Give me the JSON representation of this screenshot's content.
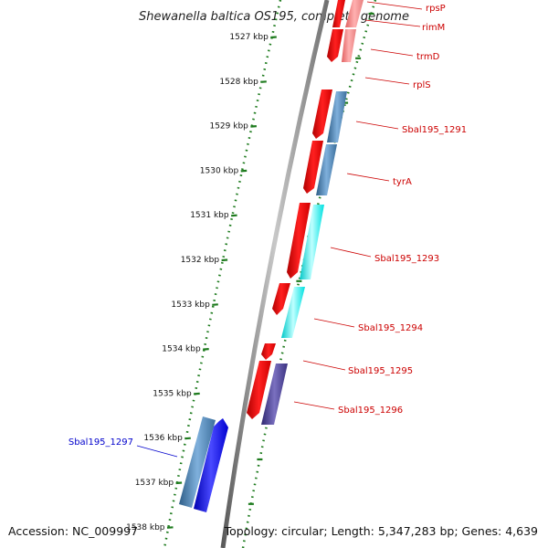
{
  "map": {
    "title": "Shewanella baltica OS195, complete genome",
    "accession": "Accession: NC_009997",
    "topology": "Topology: circular; Length: 5,347,283 bp; Genes: 4,639"
  },
  "ticks": [
    "1527 kbp",
    "1528 kbp",
    "1529 kbp",
    "1530 kbp",
    "1531 kbp",
    "1532 kbp",
    "1533 kbp",
    "1534 kbp",
    "1535 kbp",
    "1536 kbp",
    "1537 kbp",
    "1538 kbp"
  ],
  "genes": [
    {
      "label": "rpsP",
      "color": "#cc0000"
    },
    {
      "label": "rimM",
      "color": "#cc0000"
    },
    {
      "label": "trmD",
      "color": "#cc0000"
    },
    {
      "label": "rplS",
      "color": "#cc0000"
    },
    {
      "label": "Sbal195_1291",
      "color": "#cc0000"
    },
    {
      "label": "tyrA",
      "color": "#cc0000"
    },
    {
      "label": "Sbal195_1293",
      "color": "#cc0000"
    },
    {
      "label": "Sbal195_1294",
      "color": "#cc0000"
    },
    {
      "label": "Sbal195_1295",
      "color": "#cc0000"
    },
    {
      "label": "Sbal195_1296",
      "color": "#cc0000"
    },
    {
      "label": "Sbal195_1297",
      "color": "#0000cc"
    }
  ],
  "colors": {
    "cds": "#ff0000",
    "cog_steelblue": "#4682b4",
    "cog_cyan": "#00ffff",
    "cog_purple": "#483d8b",
    "cog_blue": "#0000ff",
    "cog_pink": "#f08080",
    "tick": "#1e7b1e",
    "backbone": "#888888"
  }
}
